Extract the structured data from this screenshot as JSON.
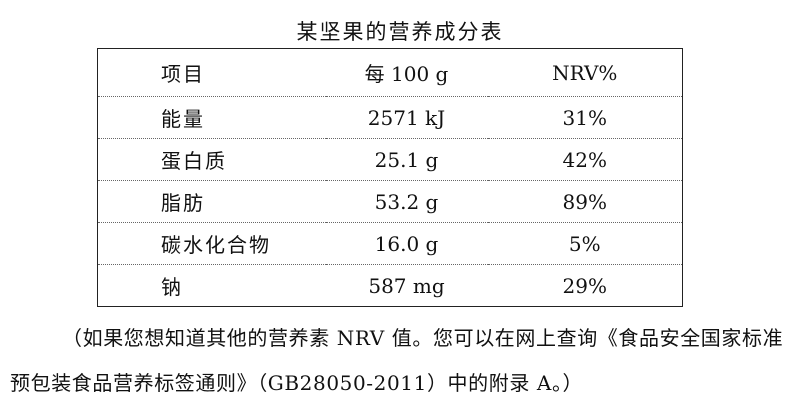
{
  "header": {
    "title": "某坚果的营养成分表"
  },
  "table": {
    "header": [
      "项目",
      "每 100 g",
      "NRV%"
    ],
    "rows": [
      [
        "能量",
        "2571 kJ",
        "31%"
      ],
      [
        "蛋白质",
        "25.1 g",
        "42%"
      ],
      [
        "脂肪",
        "53.2 g",
        "89%"
      ],
      [
        "碳水化合物",
        "16.0 g",
        "5%"
      ],
      [
        "钠",
        "587 mg",
        "29%"
      ]
    ]
  },
  "note": "（如果您想知道其他的营养素 NRV 值。您可以在网上查询《食品安全国家标准　预包装食品营养标签通则》（GB28050-2011）中的附录 A。）"
}
